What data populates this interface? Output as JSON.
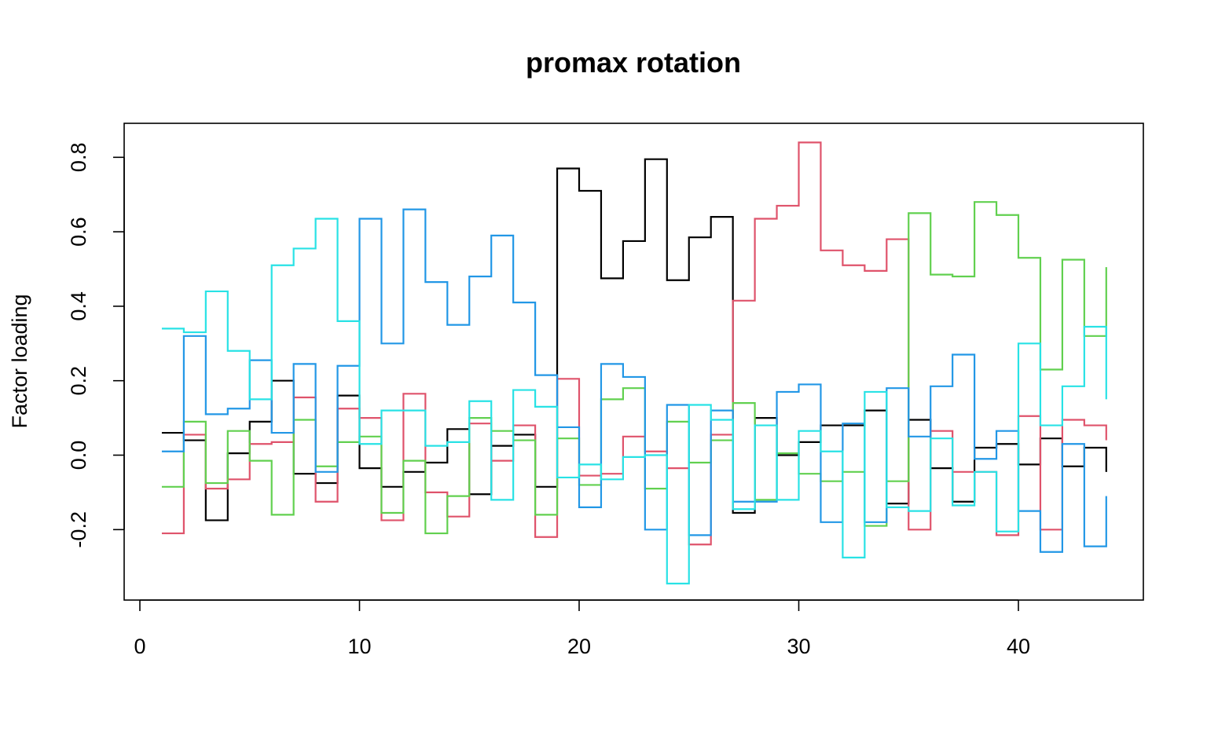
{
  "chart_data": {
    "type": "line",
    "step": true,
    "title": "promax rotation",
    "xlabel": "",
    "ylabel": "Factor loading",
    "xlim": [
      0,
      45
    ],
    "ylim": [
      -0.35,
      0.85
    ],
    "x_ticks": [
      0,
      10,
      20,
      30,
      40
    ],
    "y_ticks": [
      -0.2,
      0.0,
      0.2,
      0.4,
      0.6,
      0.8
    ],
    "y_tick_labels": [
      "-0.2",
      "0.0",
      "0.2",
      "0.4",
      "0.6",
      "0.8"
    ],
    "grid": false,
    "legend": "none",
    "x": [
      1,
      2,
      3,
      4,
      5,
      6,
      7,
      8,
      9,
      10,
      11,
      12,
      13,
      14,
      15,
      16,
      17,
      18,
      19,
      20,
      21,
      22,
      23,
      24,
      25,
      26,
      27,
      28,
      29,
      30,
      31,
      32,
      33,
      34,
      35,
      36,
      37,
      38,
      39,
      40,
      41,
      42,
      43,
      44
    ],
    "series": [
      {
        "color": "#000000",
        "values": [
          0.06,
          0.04,
          -0.175,
          0.005,
          0.09,
          0.2,
          -0.05,
          -0.075,
          0.16,
          -0.035,
          -0.085,
          -0.045,
          -0.02,
          0.07,
          -0.105,
          0.025,
          0.055,
          -0.085,
          0.77,
          0.71,
          0.475,
          0.575,
          0.795,
          0.47,
          0.585,
          0.64,
          -0.155,
          0.1,
          0.0,
          0.035,
          0.08,
          0.08,
          0.12,
          -0.13,
          0.095,
          -0.035,
          -0.125,
          0.02,
          0.03,
          -0.025,
          0.045,
          -0.03,
          0.02,
          -0.045
        ]
      },
      {
        "color": "#DF536B",
        "values": [
          -0.21,
          0.055,
          -0.09,
          -0.065,
          0.03,
          0.035,
          0.155,
          -0.125,
          0.125,
          0.1,
          -0.175,
          0.165,
          -0.1,
          -0.165,
          0.085,
          -0.015,
          0.08,
          -0.22,
          0.205,
          -0.055,
          -0.05,
          0.05,
          0.01,
          -0.035,
          -0.24,
          0.055,
          0.415,
          0.635,
          0.67,
          0.84,
          0.55,
          0.51,
          0.495,
          0.58,
          -0.2,
          0.065,
          -0.045,
          -0.045,
          -0.215,
          0.105,
          -0.2,
          0.095,
          0.08,
          0.04
        ]
      },
      {
        "color": "#61D04F",
        "values": [
          -0.085,
          0.09,
          -0.075,
          0.065,
          -0.015,
          -0.16,
          0.095,
          -0.03,
          0.035,
          0.05,
          -0.155,
          -0.015,
          -0.21,
          -0.11,
          0.1,
          0.065,
          0.04,
          -0.16,
          0.045,
          -0.08,
          0.15,
          0.18,
          -0.09,
          0.09,
          -0.02,
          0.04,
          0.14,
          -0.12,
          0.005,
          -0.05,
          -0.07,
          -0.045,
          -0.19,
          -0.07,
          0.65,
          0.485,
          0.48,
          0.68,
          0.645,
          0.53,
          0.23,
          0.525,
          0.32,
          0.505
        ]
      },
      {
        "color": "#2297E6",
        "values": [
          0.01,
          0.32,
          0.11,
          0.125,
          0.255,
          0.06,
          0.245,
          -0.045,
          0.24,
          0.635,
          0.3,
          0.66,
          0.465,
          0.35,
          0.48,
          0.59,
          0.41,
          0.215,
          0.075,
          -0.14,
          0.245,
          0.21,
          -0.2,
          0.135,
          -0.215,
          0.12,
          -0.125,
          -0.125,
          0.17,
          0.19,
          -0.18,
          0.085,
          -0.18,
          0.18,
          0.05,
          0.185,
          0.27,
          -0.01,
          0.065,
          -0.15,
          -0.26,
          0.03,
          -0.245,
          -0.11
        ]
      },
      {
        "color": "#28E2E5",
        "values": [
          0.34,
          0.33,
          0.44,
          0.28,
          0.15,
          0.51,
          0.555,
          0.635,
          0.36,
          0.03,
          0.12,
          0.12,
          0.025,
          0.035,
          0.145,
          -0.12,
          0.175,
          0.13,
          -0.06,
          -0.025,
          -0.065,
          -0.005,
          0.0,
          -0.345,
          0.135,
          0.095,
          -0.145,
          0.08,
          -0.12,
          0.065,
          0.01,
          -0.275,
          0.17,
          -0.14,
          -0.15,
          0.045,
          -0.135,
          -0.045,
          -0.205,
          0.3,
          0.08,
          0.185,
          0.345,
          0.15
        ]
      }
    ]
  }
}
